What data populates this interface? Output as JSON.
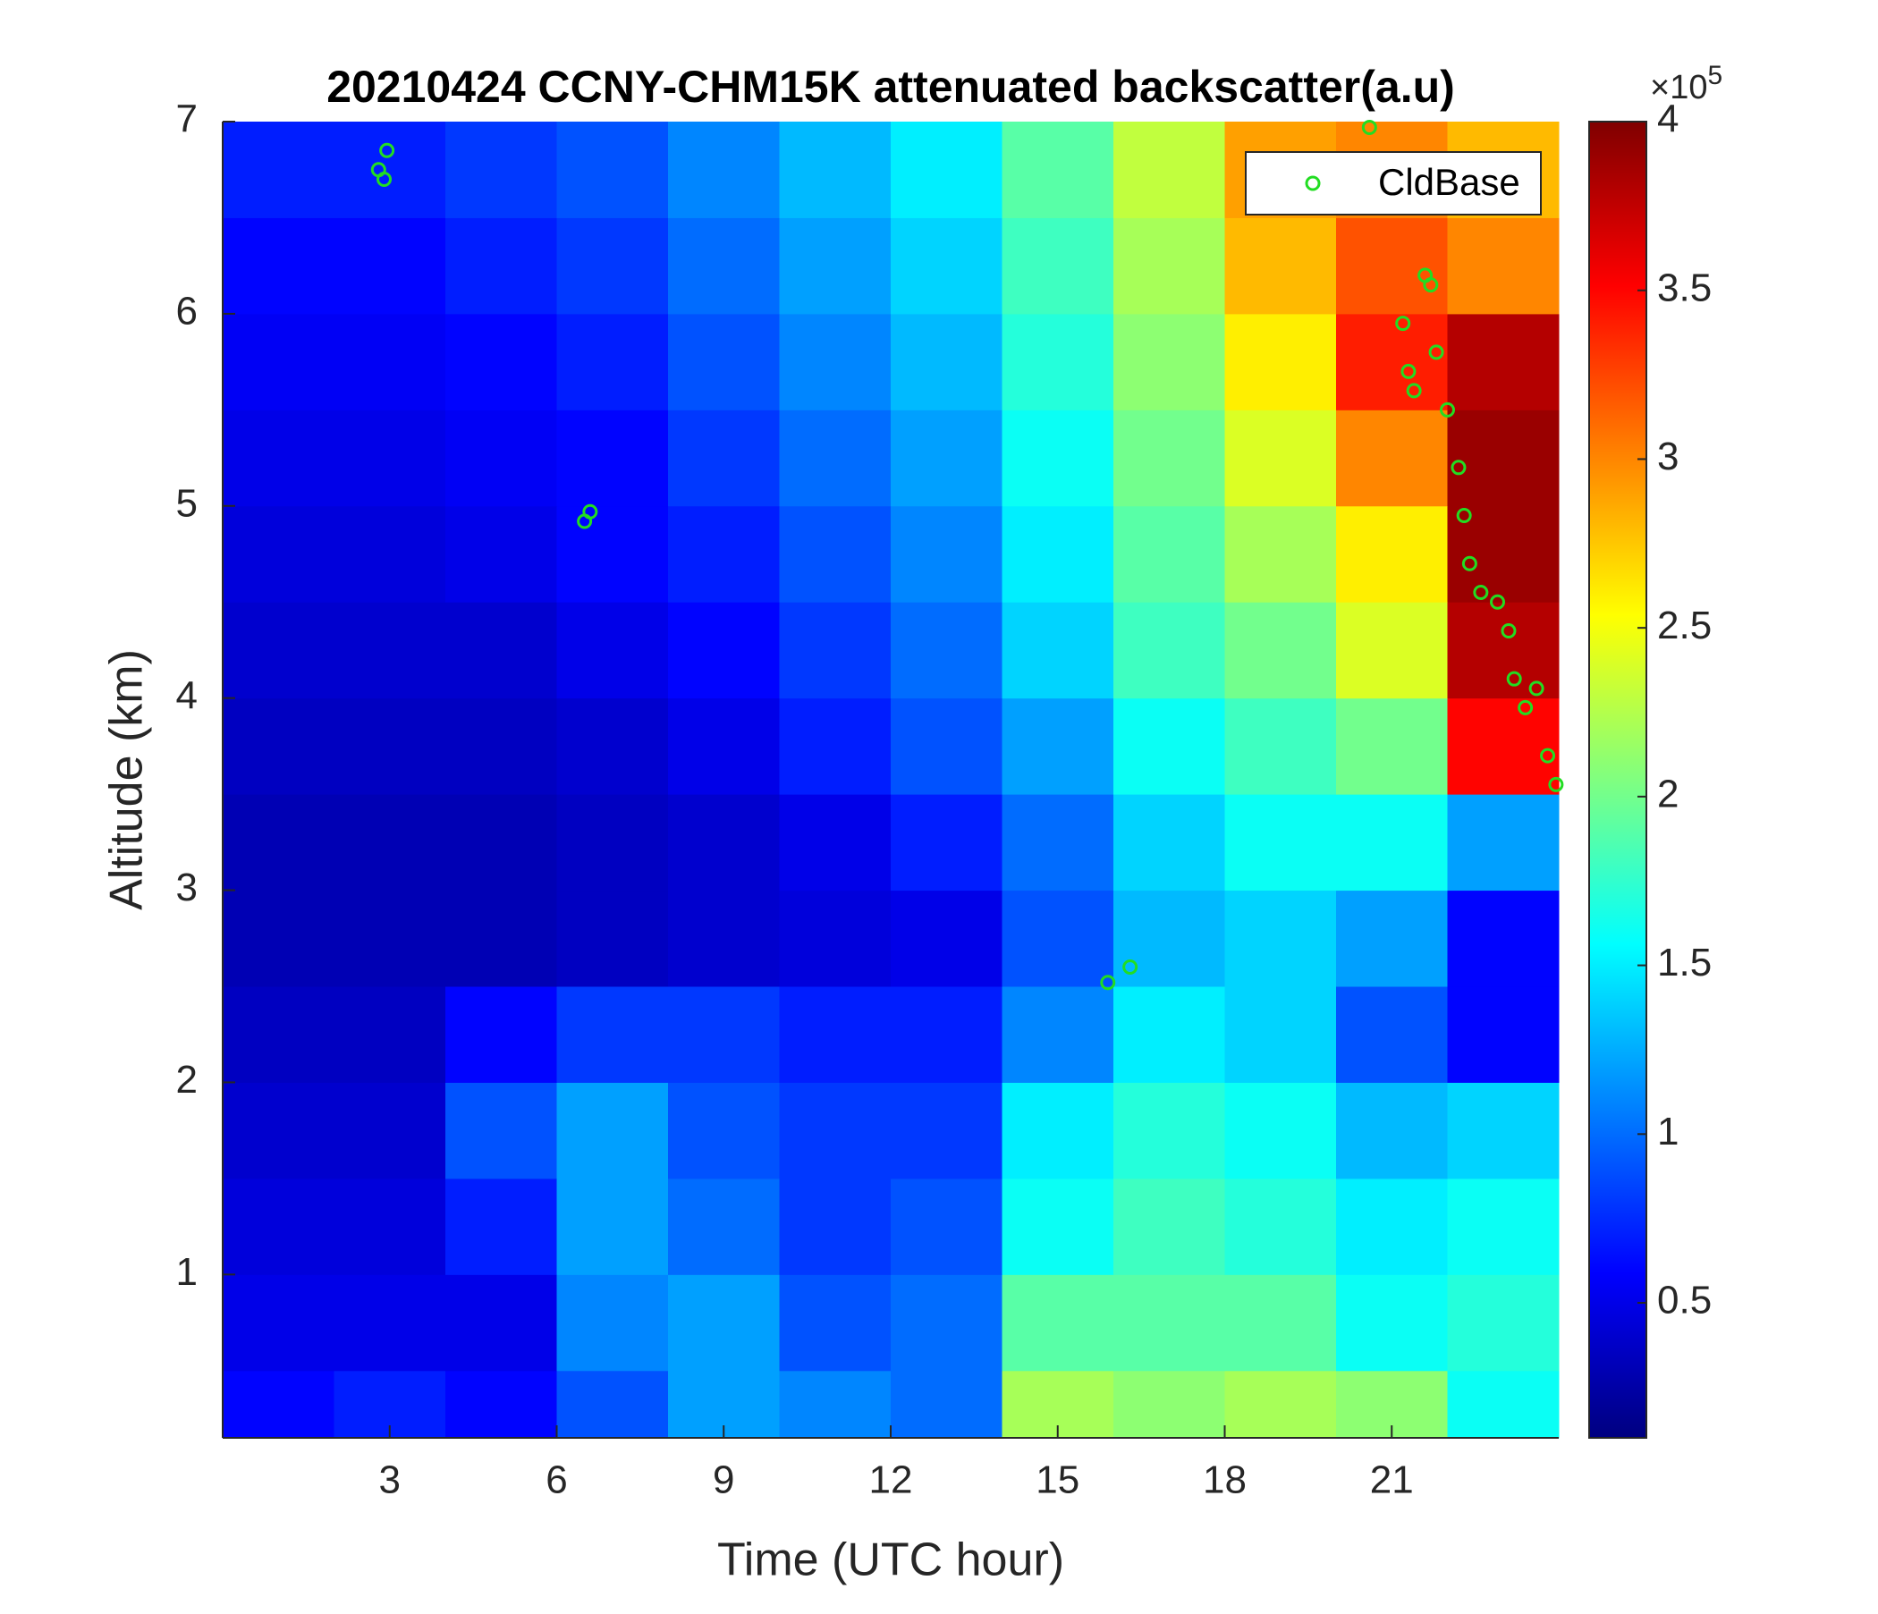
{
  "chart_data": {
    "type": "heatmap",
    "title": "20210424 CCNY-CHM15K attenuated backscatter(a.u)",
    "x_label": "Time (UTC hour)",
    "y_label": "Altitude (km)",
    "xlim": [
      0,
      24
    ],
    "xticks": [
      3,
      6,
      9,
      12,
      15,
      18,
      21
    ],
    "ylim": [
      0.15,
      7
    ],
    "yticks": [
      1,
      2,
      3,
      4,
      5,
      6,
      7
    ],
    "colormap": "jet",
    "zlim": [
      0.1,
      4
    ],
    "zticks": [
      0.5,
      1,
      1.5,
      2,
      2.5,
      3,
      3.5,
      4
    ],
    "zscale_label": "×10",
    "zscale_exponent": "5",
    "xbins": [
      0,
      2,
      4,
      6,
      8,
      10,
      12,
      14,
      16,
      18,
      20,
      22,
      24
    ],
    "ybins": [
      0.15,
      0.5,
      1,
      1.5,
      2,
      2.5,
      3,
      3.5,
      4,
      4.5,
      5,
      5.5,
      6,
      6.5,
      7
    ],
    "z": [
      [
        0.6,
        0.7,
        0.6,
        0.9,
        1.2,
        1.1,
        1.0,
        2.2,
        2.1,
        2.2,
        2.1,
        1.6
      ],
      [
        0.5,
        0.5,
        0.5,
        1.1,
        1.2,
        0.9,
        1.0,
        1.9,
        1.9,
        1.9,
        1.6,
        1.7
      ],
      [
        0.45,
        0.45,
        0.7,
        1.2,
        1.0,
        0.8,
        0.9,
        1.6,
        1.8,
        1.7,
        1.5,
        1.6
      ],
      [
        0.4,
        0.4,
        0.9,
        1.2,
        0.9,
        0.8,
        0.8,
        1.5,
        1.7,
        1.6,
        1.3,
        1.4
      ],
      [
        0.35,
        0.35,
        0.6,
        0.8,
        0.8,
        0.7,
        0.7,
        1.1,
        1.5,
        1.4,
        0.9,
        0.6
      ],
      [
        0.3,
        0.3,
        0.3,
        0.35,
        0.4,
        0.45,
        0.5,
        0.9,
        1.3,
        1.4,
        1.2,
        0.6
      ],
      [
        0.3,
        0.3,
        0.3,
        0.35,
        0.4,
        0.5,
        0.7,
        1.0,
        1.4,
        1.6,
        1.6,
        1.2
      ],
      [
        0.35,
        0.35,
        0.35,
        0.4,
        0.5,
        0.7,
        0.9,
        1.2,
        1.6,
        1.8,
        2.0,
        3.5
      ],
      [
        0.4,
        0.4,
        0.4,
        0.5,
        0.6,
        0.8,
        1.0,
        1.4,
        1.8,
        2.0,
        2.4,
        3.8
      ],
      [
        0.45,
        0.45,
        0.5,
        0.6,
        0.7,
        0.9,
        1.1,
        1.5,
        1.9,
        2.2,
        2.6,
        3.9
      ],
      [
        0.5,
        0.5,
        0.55,
        0.6,
        0.8,
        1.0,
        1.2,
        1.6,
        2.0,
        2.4,
        3.0,
        3.9
      ],
      [
        0.55,
        0.55,
        0.6,
        0.7,
        0.9,
        1.1,
        1.3,
        1.7,
        2.1,
        2.6,
        3.4,
        3.8
      ],
      [
        0.6,
        0.6,
        0.7,
        0.8,
        1.0,
        1.2,
        1.4,
        1.8,
        2.2,
        2.8,
        3.2,
        3.0
      ],
      [
        0.7,
        0.7,
        0.8,
        0.9,
        1.1,
        1.3,
        1.5,
        1.9,
        2.3,
        2.9,
        3.0,
        2.8
      ]
    ],
    "legend": "upper right",
    "series": [
      {
        "name": "CldBase",
        "type": "scatter",
        "color": "#22dd22",
        "x": [
          2.8,
          2.9,
          2.95,
          6.5,
          6.6,
          15.9,
          16.3,
          20.6,
          21.6,
          21.7,
          21.2,
          21.3,
          21.4,
          21.8,
          22.0,
          22.2,
          22.3,
          22.4,
          22.6,
          22.9,
          23.1,
          23.2,
          23.4,
          23.6,
          23.8,
          23.95
        ],
        "y": [
          6.75,
          6.7,
          6.85,
          4.92,
          4.97,
          2.52,
          2.6,
          6.97,
          6.2,
          6.15,
          5.95,
          5.7,
          5.6,
          5.8,
          5.5,
          5.2,
          4.95,
          4.7,
          4.55,
          4.5,
          4.35,
          4.1,
          3.95,
          4.05,
          3.7,
          3.55
        ]
      }
    ]
  }
}
